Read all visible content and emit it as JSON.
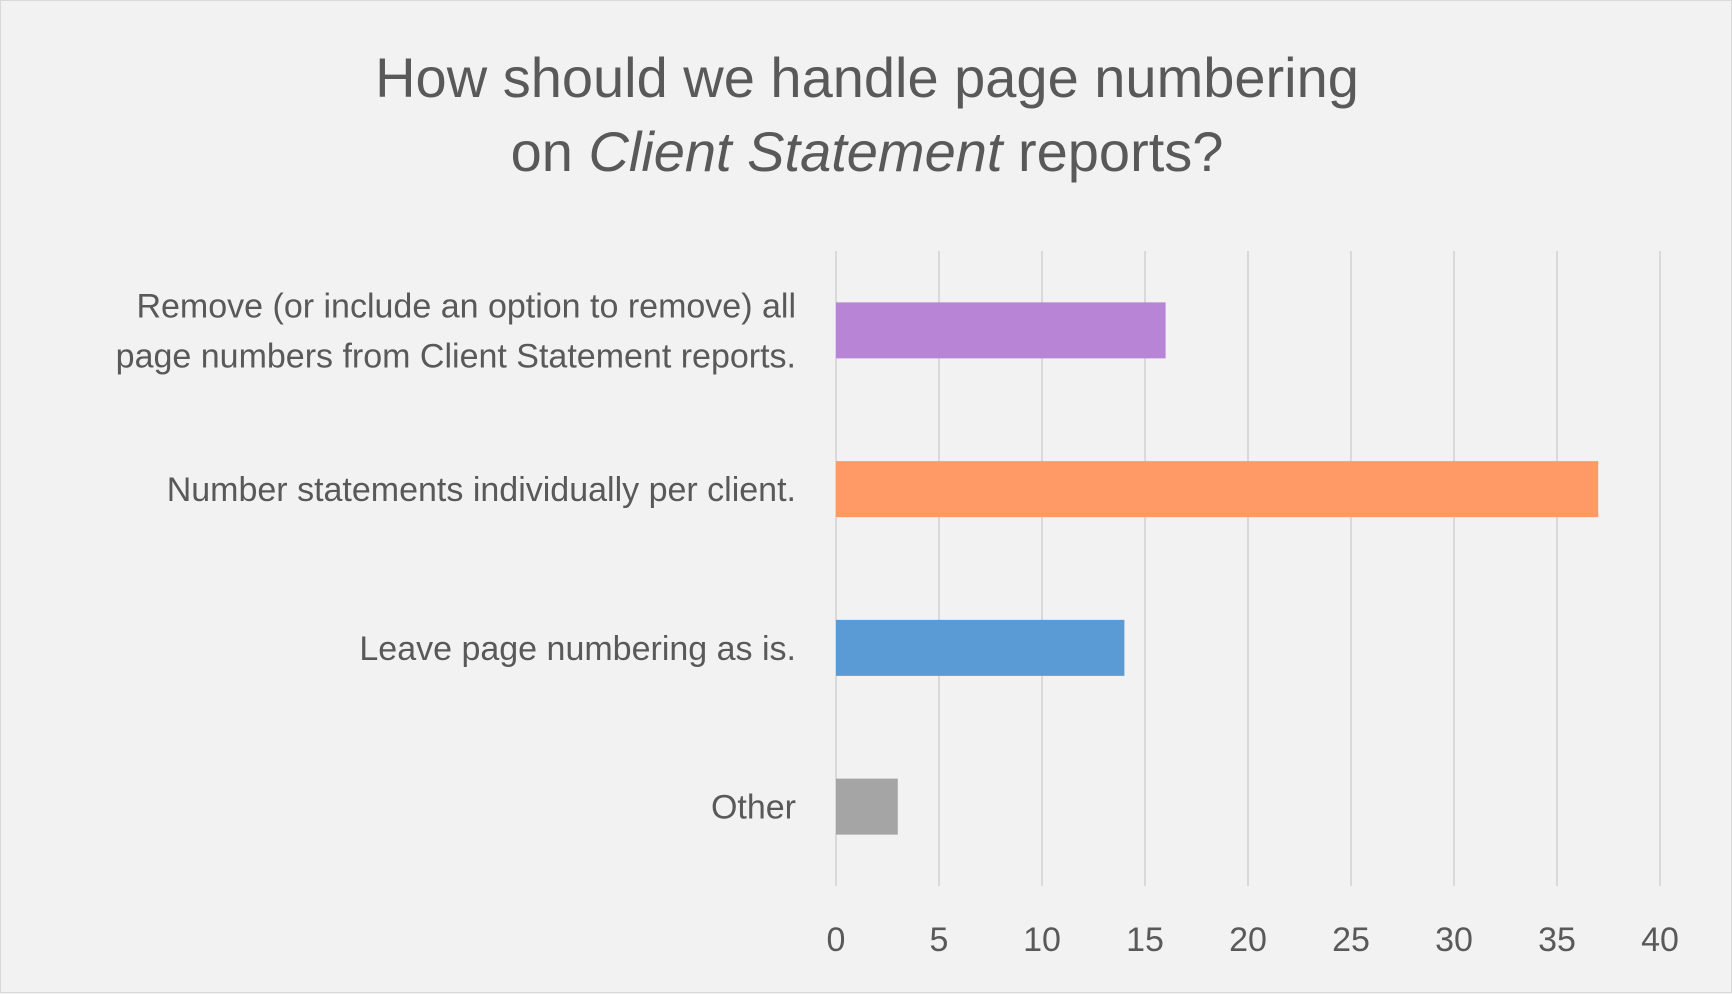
{
  "chart_data": {
    "type": "bar",
    "orientation": "horizontal",
    "title": {
      "line1": "How should we handle page numbering",
      "line2_prefix": "on ",
      "line2_italic": "Client Statement",
      "line2_suffix": " reports?"
    },
    "categories": [
      [
        "Remove (or include an option to remove) all",
        "page numbers from Client Statement reports."
      ],
      [
        "Number statements individually per client."
      ],
      [
        "Leave page numbering as is."
      ],
      [
        "Other"
      ]
    ],
    "values": [
      16,
      37,
      14,
      3
    ],
    "colors": [
      "#b884d6",
      "#ff9966",
      "#5b9bd5",
      "#a5a5a5"
    ],
    "xlim": [
      0,
      40
    ],
    "xticks": [
      0,
      5,
      10,
      15,
      20,
      25,
      30,
      35,
      40
    ],
    "grid": true,
    "legend": "none",
    "xlabel": "",
    "ylabel": ""
  }
}
